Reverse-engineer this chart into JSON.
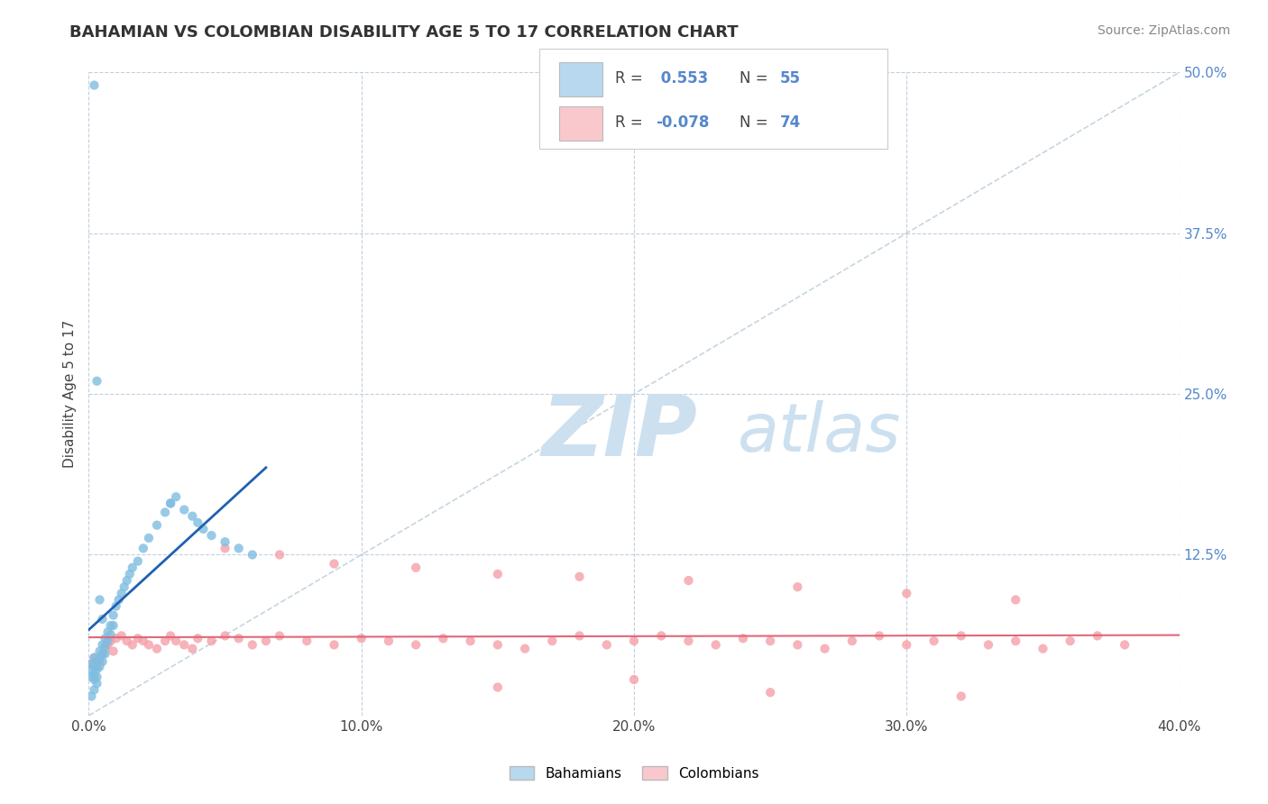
{
  "title": "BAHAMIAN VS COLOMBIAN DISABILITY AGE 5 TO 17 CORRELATION CHART",
  "source": "Source: ZipAtlas.com",
  "ylabel": "Disability Age 5 to 17",
  "xlim": [
    0.0,
    0.4
  ],
  "ylim": [
    0.0,
    0.5
  ],
  "xticks": [
    0.0,
    0.1,
    0.2,
    0.3,
    0.4
  ],
  "xtick_labels": [
    "0.0%",
    "10.0%",
    "20.0%",
    "30.0%",
    "40.0%"
  ],
  "yticks": [
    0.0,
    0.125,
    0.25,
    0.375,
    0.5
  ],
  "ytick_labels": [
    "",
    "12.5%",
    "25.0%",
    "37.5%",
    "50.0%"
  ],
  "R_bah": 0.553,
  "N_bah": 55,
  "R_col": -0.078,
  "N_col": 74,
  "bahamian_color": "#7fbde0",
  "colombian_color": "#f4a0a8",
  "bahamian_trend_color": "#2060b0",
  "colombian_trend_color": "#e06878",
  "legend_bah_fill": "#b8d8f0",
  "legend_col_fill": "#f8c8cc",
  "watermark_zip": "ZIP",
  "watermark_atlas": "atlas",
  "watermark_color": "#cce0f0",
  "background_color": "#ffffff",
  "grid_color": "#c0d0e0",
  "bahamian_x": [
    0.001,
    0.001,
    0.001,
    0.002,
    0.002,
    0.002,
    0.002,
    0.003,
    0.003,
    0.003,
    0.003,
    0.004,
    0.004,
    0.004,
    0.005,
    0.005,
    0.005,
    0.006,
    0.006,
    0.006,
    0.007,
    0.007,
    0.008,
    0.008,
    0.009,
    0.009,
    0.01,
    0.011,
    0.012,
    0.013,
    0.014,
    0.015,
    0.016,
    0.018,
    0.02,
    0.022,
    0.025,
    0.028,
    0.03,
    0.032,
    0.035,
    0.038,
    0.04,
    0.042,
    0.045,
    0.05,
    0.055,
    0.06,
    0.002,
    0.003,
    0.004,
    0.005,
    0.03,
    0.002,
    0.001
  ],
  "bahamian_y": [
    0.04,
    0.035,
    0.03,
    0.045,
    0.038,
    0.032,
    0.028,
    0.042,
    0.036,
    0.03,
    0.025,
    0.05,
    0.044,
    0.038,
    0.055,
    0.048,
    0.042,
    0.06,
    0.054,
    0.048,
    0.065,
    0.058,
    0.07,
    0.063,
    0.078,
    0.07,
    0.085,
    0.09,
    0.095,
    0.1,
    0.105,
    0.11,
    0.115,
    0.12,
    0.13,
    0.138,
    0.148,
    0.158,
    0.165,
    0.17,
    0.16,
    0.155,
    0.15,
    0.145,
    0.14,
    0.135,
    0.13,
    0.125,
    0.49,
    0.26,
    0.09,
    0.075,
    0.165,
    0.02,
    0.015
  ],
  "colombian_x": [
    0.001,
    0.002,
    0.003,
    0.004,
    0.005,
    0.006,
    0.007,
    0.008,
    0.009,
    0.01,
    0.012,
    0.014,
    0.016,
    0.018,
    0.02,
    0.022,
    0.025,
    0.028,
    0.03,
    0.032,
    0.035,
    0.038,
    0.04,
    0.045,
    0.05,
    0.055,
    0.06,
    0.065,
    0.07,
    0.08,
    0.09,
    0.1,
    0.11,
    0.12,
    0.13,
    0.14,
    0.15,
    0.16,
    0.17,
    0.18,
    0.19,
    0.2,
    0.21,
    0.22,
    0.23,
    0.24,
    0.25,
    0.26,
    0.27,
    0.28,
    0.29,
    0.3,
    0.31,
    0.32,
    0.33,
    0.34,
    0.35,
    0.36,
    0.37,
    0.38,
    0.05,
    0.07,
    0.09,
    0.12,
    0.15,
    0.18,
    0.22,
    0.26,
    0.3,
    0.34,
    0.2,
    0.15,
    0.25,
    0.32
  ],
  "colombian_y": [
    0.04,
    0.045,
    0.038,
    0.042,
    0.048,
    0.052,
    0.055,
    0.058,
    0.05,
    0.06,
    0.062,
    0.058,
    0.055,
    0.06,
    0.058,
    0.055,
    0.052,
    0.058,
    0.062,
    0.058,
    0.055,
    0.052,
    0.06,
    0.058,
    0.062,
    0.06,
    0.055,
    0.058,
    0.062,
    0.058,
    0.055,
    0.06,
    0.058,
    0.055,
    0.06,
    0.058,
    0.055,
    0.052,
    0.058,
    0.062,
    0.055,
    0.058,
    0.062,
    0.058,
    0.055,
    0.06,
    0.058,
    0.055,
    0.052,
    0.058,
    0.062,
    0.055,
    0.058,
    0.062,
    0.055,
    0.058,
    0.052,
    0.058,
    0.062,
    0.055,
    0.13,
    0.125,
    0.118,
    0.115,
    0.11,
    0.108,
    0.105,
    0.1,
    0.095,
    0.09,
    0.028,
    0.022,
    0.018,
    0.015
  ]
}
